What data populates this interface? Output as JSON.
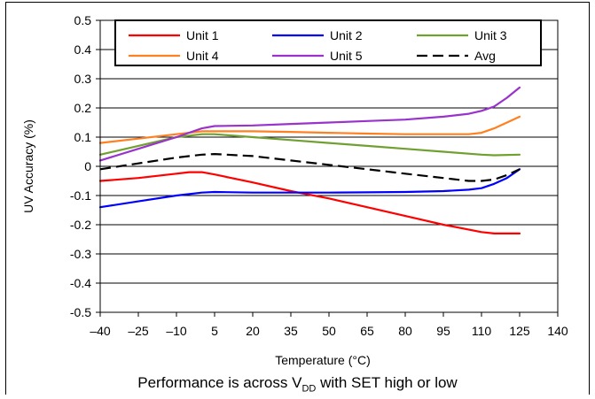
{
  "chart_data": {
    "type": "line",
    "title": "",
    "xlabel": "Temperature (°C)",
    "ylabel": "UV Accuracy (%)",
    "xlim": [
      -40,
      140
    ],
    "ylim": [
      -0.5,
      0.5
    ],
    "x_ticks": [
      "–40",
      "–25",
      "–10",
      "5",
      "20",
      "35",
      "50",
      "65",
      "80",
      "95",
      "110",
      "125",
      "140"
    ],
    "y_ticks": [
      "0.5",
      "0.4",
      "0.3",
      "0.2",
      "0.1",
      "0",
      "-0.1",
      "-0.2",
      "-0.3",
      "-0.4",
      "-0.5"
    ],
    "grid": true,
    "legend_position": "top",
    "caption": {
      "main": "Performance is across V",
      "sub": "DD",
      "tail": " with SET high or low"
    },
    "series": [
      {
        "name": "Unit 1",
        "color": "#ff0000",
        "dash": "solid",
        "x": [
          -40,
          -25,
          -10,
          -5,
          0,
          5,
          20,
          35,
          50,
          65,
          80,
          95,
          110,
          115,
          125
        ],
        "y": [
          -0.05,
          -0.04,
          -0.025,
          -0.02,
          -0.02,
          -0.028,
          -0.055,
          -0.085,
          -0.11,
          -0.14,
          -0.17,
          -0.2,
          -0.225,
          -0.23,
          -0.23
        ]
      },
      {
        "name": "Unit 2",
        "color": "#0000ff",
        "dash": "solid",
        "x": [
          -40,
          -25,
          -10,
          0,
          5,
          20,
          35,
          50,
          65,
          80,
          95,
          105,
          110,
          115,
          120,
          125
        ],
        "y": [
          -0.14,
          -0.12,
          -0.1,
          -0.09,
          -0.088,
          -0.09,
          -0.09,
          -0.09,
          -0.089,
          -0.088,
          -0.085,
          -0.08,
          -0.075,
          -0.06,
          -0.04,
          -0.01
        ]
      },
      {
        "name": "Unit 3",
        "color": "#70a030",
        "dash": "solid",
        "x": [
          -40,
          -25,
          -10,
          0,
          5,
          20,
          35,
          50,
          65,
          80,
          95,
          110,
          115,
          125
        ],
        "y": [
          0.04,
          0.07,
          0.1,
          0.11,
          0.11,
          0.1,
          0.09,
          0.08,
          0.07,
          0.06,
          0.05,
          0.04,
          0.038,
          0.04
        ]
      },
      {
        "name": "Unit 4",
        "color": "#ff8020",
        "dash": "solid",
        "x": [
          -40,
          -25,
          -10,
          0,
          5,
          20,
          35,
          50,
          65,
          80,
          95,
          105,
          110,
          115,
          120,
          125
        ],
        "y": [
          0.08,
          0.095,
          0.11,
          0.12,
          0.12,
          0.12,
          0.118,
          0.115,
          0.112,
          0.11,
          0.11,
          0.11,
          0.115,
          0.13,
          0.15,
          0.17
        ]
      },
      {
        "name": "Unit 5",
        "color": "#9933cc",
        "dash": "solid",
        "x": [
          -40,
          -25,
          -10,
          0,
          5,
          20,
          35,
          50,
          65,
          80,
          95,
          105,
          110,
          115,
          120,
          125
        ],
        "y": [
          0.02,
          0.06,
          0.1,
          0.13,
          0.138,
          0.14,
          0.145,
          0.15,
          0.155,
          0.16,
          0.17,
          0.18,
          0.19,
          0.205,
          0.235,
          0.27
        ]
      },
      {
        "name": "Avg",
        "color": "#000000",
        "dash": "dashed",
        "x": [
          -40,
          -25,
          -10,
          0,
          5,
          20,
          35,
          50,
          65,
          80,
          95,
          105,
          110,
          115,
          120,
          125
        ],
        "y": [
          -0.01,
          0.01,
          0.03,
          0.04,
          0.042,
          0.035,
          0.02,
          0.005,
          -0.01,
          -0.025,
          -0.04,
          -0.05,
          -0.05,
          -0.045,
          -0.03,
          -0.01
        ]
      }
    ]
  }
}
